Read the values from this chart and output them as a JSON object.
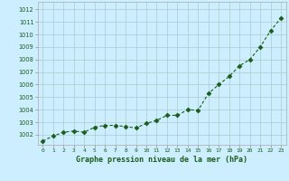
{
  "x": [
    0,
    1,
    2,
    3,
    4,
    5,
    6,
    7,
    8,
    9,
    10,
    11,
    12,
    13,
    14,
    15,
    16,
    17,
    18,
    19,
    20,
    21,
    22,
    23
  ],
  "y": [
    1001.5,
    1001.9,
    1002.2,
    1002.3,
    1002.2,
    1002.6,
    1002.75,
    1002.75,
    1002.65,
    1002.55,
    1002.9,
    1003.15,
    1003.55,
    1003.55,
    1004.0,
    1003.95,
    1005.3,
    1006.0,
    1006.65,
    1007.5,
    1008.0,
    1009.0,
    1010.3,
    1011.3
  ],
  "line_color": "#1a5c1a",
  "marker_color": "#1a5c1a",
  "bg_color": "#cceeff",
  "grid_color": "#aacccc",
  "ylabel_ticks": [
    1002,
    1003,
    1004,
    1005,
    1006,
    1007,
    1008,
    1009,
    1010,
    1011,
    1012
  ],
  "xlabel_label": "Graphe pression niveau de la mer (hPa)",
  "ylim": [
    1001.2,
    1012.6
  ],
  "xlim": [
    -0.5,
    23.5
  ],
  "figw": 3.2,
  "figh": 2.0,
  "dpi": 100
}
